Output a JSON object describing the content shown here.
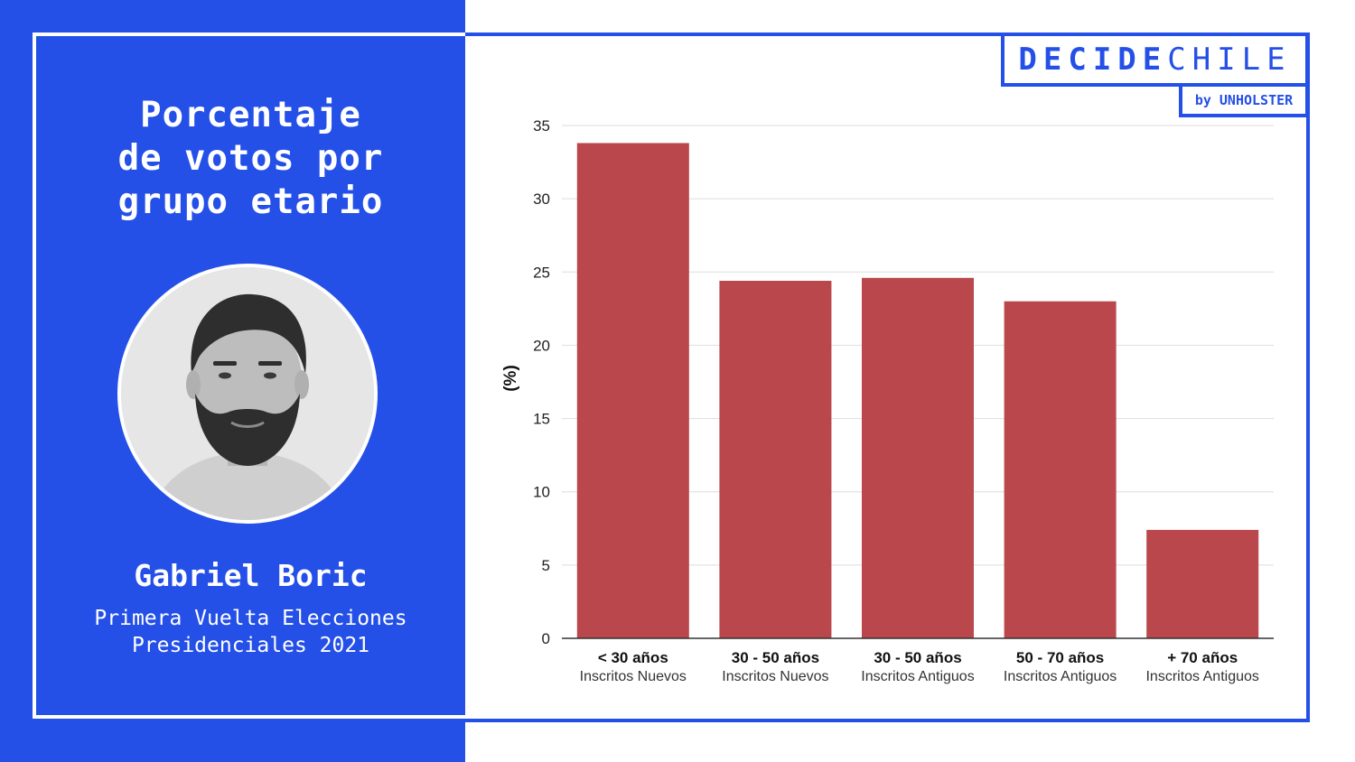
{
  "panel": {
    "title_lines": [
      "Porcentaje",
      "de votos por",
      "grupo etario"
    ],
    "candidate_name": "Gabriel Boric",
    "subtitle_lines": [
      "Primera Vuelta Elecciones",
      "Presidenciales 2021"
    ],
    "avatar_icon": "person-portrait-icon"
  },
  "logo": {
    "part1": "DECIDE",
    "part2": "CHILE",
    "byline": "by UNHOLSTER"
  },
  "colors": {
    "brand_blue": "#2450e8",
    "bar": "#b9474b"
  },
  "chart_data": {
    "type": "bar",
    "categories": [
      "< 30 años",
      "30 - 50 años",
      "30 - 50 años",
      "50 - 70 años",
      "+ 70 años"
    ],
    "category_sublabels": [
      "Inscritos Nuevos",
      "Inscritos Nuevos",
      "Inscritos Antiguos",
      "Inscritos Antiguos",
      "Inscritos Antiguos"
    ],
    "values": [
      33.8,
      24.4,
      24.6,
      23.0,
      7.4
    ],
    "ylabel": "(%)",
    "xlabel": "",
    "ylim": [
      0,
      35
    ],
    "yticks": [
      0,
      5,
      10,
      15,
      20,
      25,
      30,
      35
    ],
    "grid": true,
    "legend": "none"
  }
}
